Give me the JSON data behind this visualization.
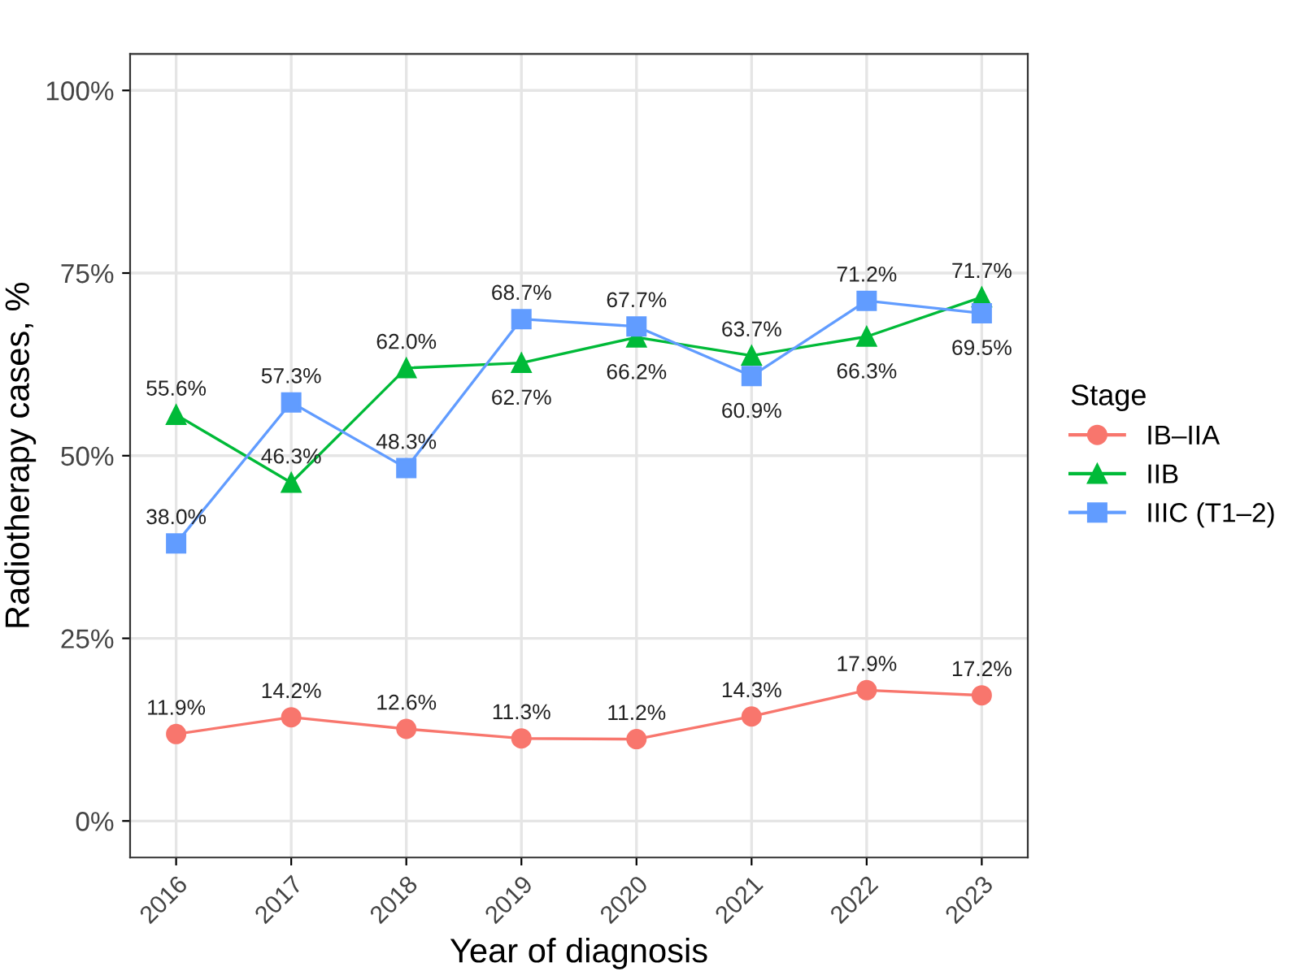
{
  "chart_data": {
    "type": "line",
    "xlabel": "Year of diagnosis",
    "ylabel": "Radiotherapy cases, %",
    "legend_title": "Stage",
    "categories": [
      "2016",
      "2017",
      "2018",
      "2019",
      "2020",
      "2021",
      "2022",
      "2023"
    ],
    "series": [
      {
        "name": "IB–IIA",
        "color": "#f8766d",
        "marker": "circle",
        "values": [
          11.9,
          14.2,
          12.6,
          11.3,
          11.2,
          14.3,
          17.9,
          17.2
        ],
        "value_labels": [
          "11.9%",
          "14.2%",
          "12.6%",
          "11.3%",
          "11.2%",
          "14.3%",
          "17.9%",
          "17.2%"
        ]
      },
      {
        "name": "IIB",
        "color": "#00ba38",
        "marker": "triangle",
        "values": [
          55.6,
          46.3,
          62.0,
          62.7,
          66.2,
          63.7,
          66.3,
          71.7
        ],
        "value_labels": [
          "55.6%",
          "46.3%",
          "62.0%",
          "62.7%",
          "66.2%",
          "63.7%",
          "66.3%",
          "71.7%"
        ]
      },
      {
        "name": "IIIC (T1–2)",
        "color": "#619cff",
        "marker": "square",
        "values": [
          38.0,
          57.3,
          48.3,
          68.7,
          67.7,
          60.9,
          71.2,
          69.5
        ],
        "value_labels": [
          "38.0%",
          "57.3%",
          "48.3%",
          "68.7%",
          "67.7%",
          "60.9%",
          "71.2%",
          "69.5%"
        ]
      }
    ],
    "ylim": [
      -5,
      105
    ],
    "yticks": [
      {
        "value": 0,
        "label": "0%"
      },
      {
        "value": 25,
        "label": "25%"
      },
      {
        "value": 50,
        "label": "50%"
      },
      {
        "value": 75,
        "label": "75%"
      },
      {
        "value": 100,
        "label": "100%"
      }
    ],
    "grid": true,
    "legend": "right",
    "line_style": "solid"
  }
}
